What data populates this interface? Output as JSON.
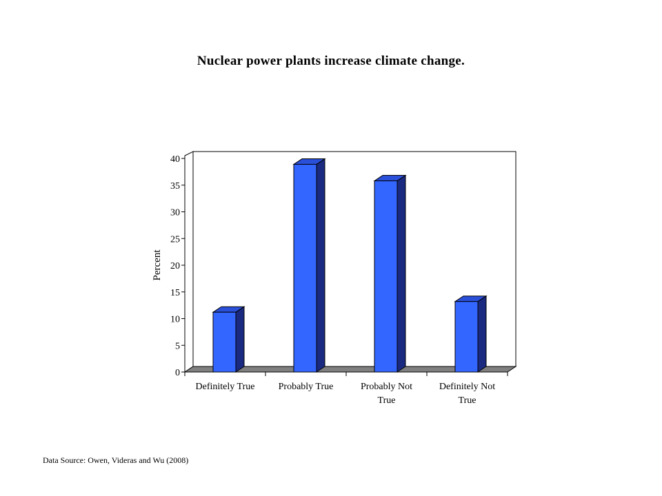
{
  "chart_data": {
    "type": "bar",
    "title": "Nuclear power plants increase climate change.",
    "categories": [
      "Definitely True",
      "Probably True",
      "Probably Not True",
      "Definitely Not True"
    ],
    "values": [
      11.2,
      38.9,
      35.8,
      13.2
    ],
    "ylabel": "Percent",
    "xlabel": "",
    "ylim": [
      0,
      40
    ],
    "yticks": [
      0,
      5,
      10,
      15,
      20,
      25,
      30,
      35,
      40
    ],
    "grid": false,
    "legend": "none",
    "colors": {
      "bar_front": "#3366ff",
      "bar_side": "#1a2a80",
      "bar_top": "#2a4fd8",
      "floor": "#808080"
    }
  },
  "source_note": "Data Source: Owen, Videras and Wu (2008)"
}
